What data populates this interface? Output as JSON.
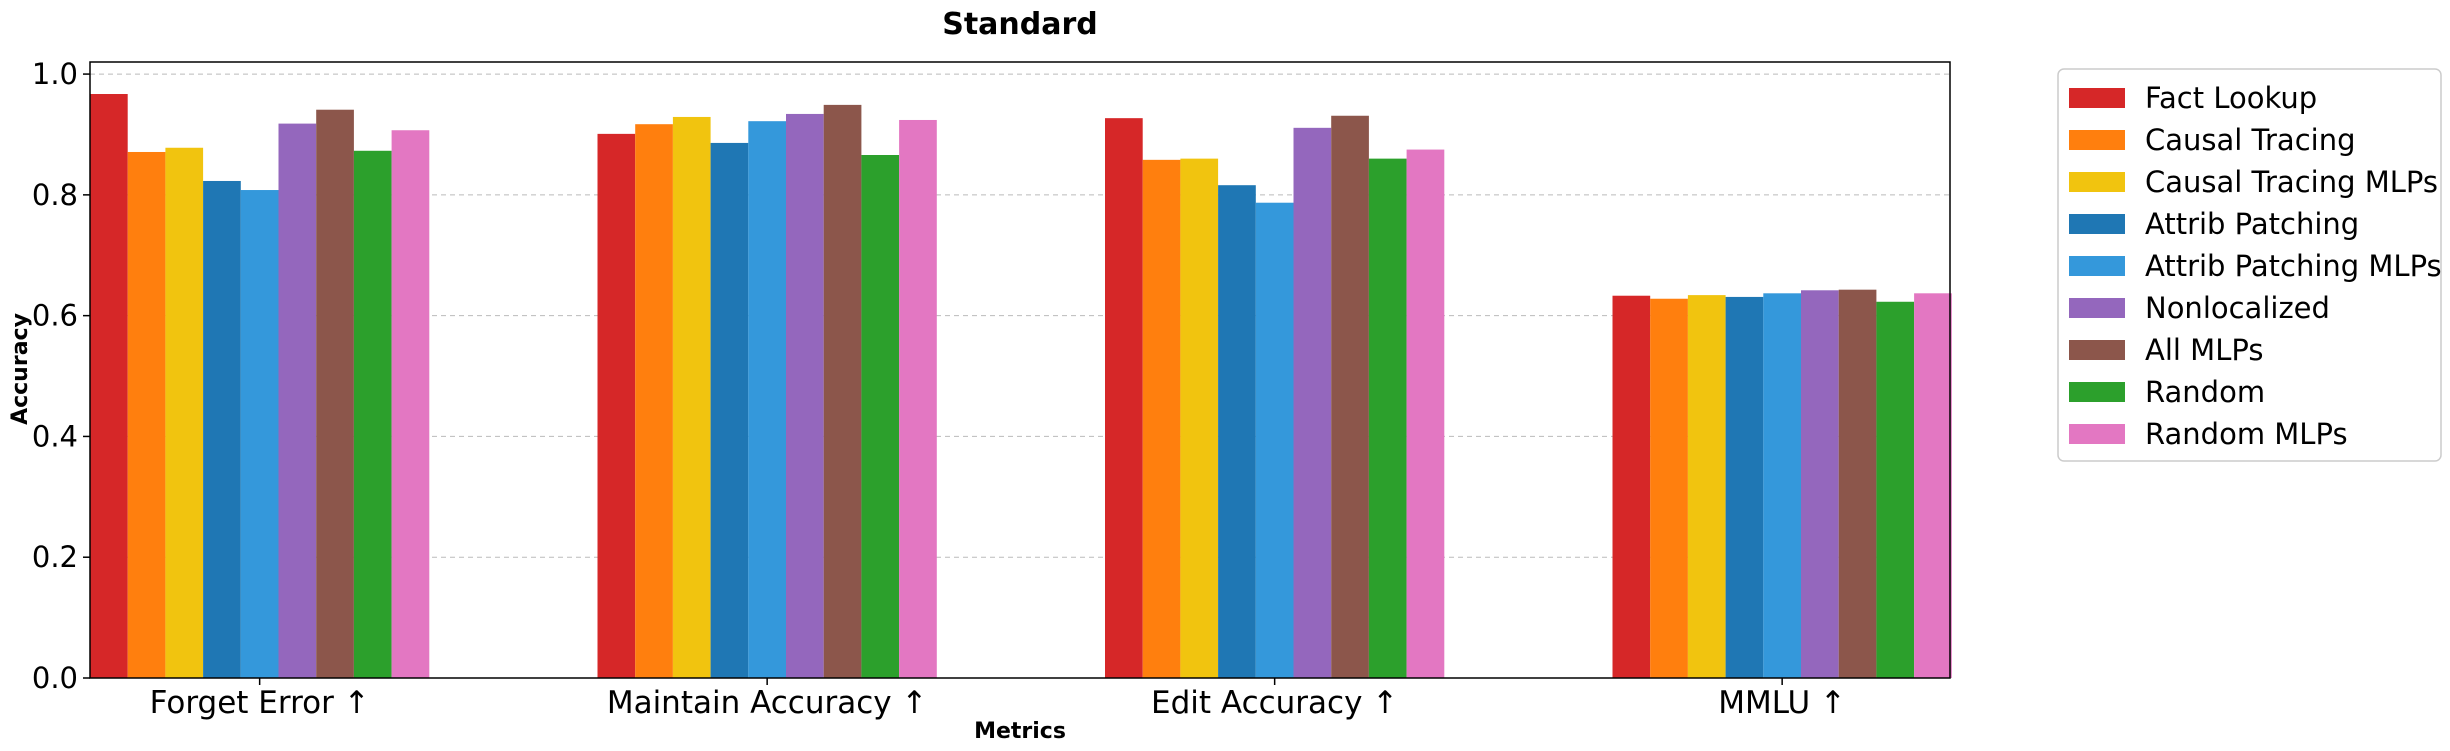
{
  "chart_data": {
    "type": "bar",
    "title": "Standard",
    "xlabel": "Metrics",
    "ylabel": "Accuracy",
    "ylim": [
      0,
      1.02
    ],
    "yticks": [
      "0.0",
      "0.2",
      "0.4",
      "0.6",
      "0.8",
      "1.0"
    ],
    "grid": "horizontal-dashed",
    "legend_position": "outside-right-top",
    "categories": [
      "Forget Error ↑",
      "Maintain Accuracy ↑",
      "Edit Accuracy ↑",
      "MMLU ↑"
    ],
    "series": [
      {
        "name": "Fact Lookup",
        "color": "#d62728",
        "values": [
          0.967,
          0.901,
          0.927,
          0.633
        ]
      },
      {
        "name": "Causal Tracing",
        "color": "#ff7f0e",
        "values": [
          0.871,
          0.917,
          0.858,
          0.628
        ]
      },
      {
        "name": "Causal Tracing MLPs",
        "color": "#f1c40f",
        "values": [
          0.878,
          0.929,
          0.86,
          0.634
        ]
      },
      {
        "name": "Attrib Patching",
        "color": "#1f77b4",
        "values": [
          0.823,
          0.886,
          0.816,
          0.631
        ]
      },
      {
        "name": "Attrib Patching MLPs",
        "color": "#3498db",
        "values": [
          0.808,
          0.922,
          0.787,
          0.637
        ]
      },
      {
        "name": "Nonlocalized",
        "color": "#9467bd",
        "values": [
          0.918,
          0.934,
          0.911,
          0.642
        ]
      },
      {
        "name": "All MLPs",
        "color": "#8c564b",
        "values": [
          0.941,
          0.949,
          0.931,
          0.643
        ]
      },
      {
        "name": "Random",
        "color": "#2ca02c",
        "values": [
          0.873,
          0.866,
          0.86,
          0.623
        ]
      },
      {
        "name": "Random MLPs",
        "color": "#e377c2",
        "values": [
          0.907,
          0.924,
          0.875,
          0.637
        ]
      }
    ]
  }
}
